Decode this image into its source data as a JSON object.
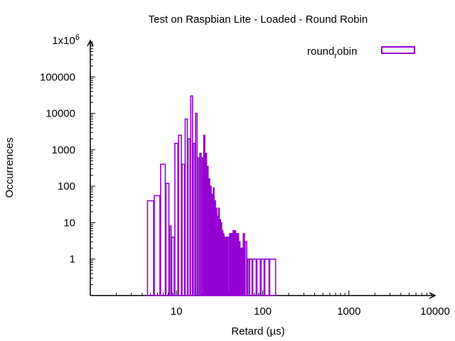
{
  "chart_data": {
    "type": "bar",
    "title": "Test on Raspbian Lite - Loaded - Round Robin",
    "xlabel": "Retard (µs)",
    "ylabel": "Occurrences",
    "x_scale": "log",
    "y_scale": "log",
    "xlim": [
      1,
      10000
    ],
    "ylim": [
      0.1,
      1000000
    ],
    "legend_position": "top-right",
    "grid": false,
    "x_ticks": [
      {
        "value": 10,
        "label": "10"
      },
      {
        "value": 100,
        "label": "100"
      },
      {
        "value": 1000,
        "label": "1000"
      },
      {
        "value": 10000,
        "label": "10000"
      }
    ],
    "y_ticks": [
      {
        "value": 1,
        "label": "1"
      },
      {
        "value": 10,
        "label": "10"
      },
      {
        "value": 100,
        "label": "100"
      },
      {
        "value": 1000,
        "label": "1000"
      },
      {
        "value": 10000,
        "label": "10000"
      },
      {
        "value": 100000,
        "label": "100000"
      }
    ],
    "y_top_tick": {
      "value": 1000000,
      "mantissa": "1x10",
      "exponent": "6"
    },
    "series": [
      {
        "legend_base": "round",
        "legend_sub": "r",
        "legend_rest": "obin",
        "color": "#9400d3",
        "points": [
          [
            5,
            40
          ],
          [
            6,
            55
          ],
          [
            7,
            400
          ],
          [
            8,
            120
          ],
          [
            8.5,
            8
          ],
          [
            9,
            4
          ],
          [
            10,
            1500
          ],
          [
            11,
            2500
          ],
          [
            12,
            400
          ],
          [
            13,
            7000
          ],
          [
            14,
            2000
          ],
          [
            15,
            30000
          ],
          [
            16,
            1500
          ],
          [
            17,
            10000
          ],
          [
            18,
            600
          ],
          [
            19,
            800
          ],
          [
            20,
            600
          ],
          [
            21,
            2500
          ],
          [
            22,
            800
          ],
          [
            23,
            350
          ],
          [
            24,
            160
          ],
          [
            25,
            100
          ],
          [
            26,
            60
          ],
          [
            27,
            90
          ],
          [
            28,
            40
          ],
          [
            29,
            25
          ],
          [
            30,
            15
          ],
          [
            31,
            25
          ],
          [
            32,
            12
          ],
          [
            33,
            10
          ],
          [
            34,
            6
          ],
          [
            35,
            5
          ],
          [
            36,
            4
          ],
          [
            37,
            4
          ],
          [
            38,
            4
          ],
          [
            40,
            4
          ],
          [
            42,
            5
          ],
          [
            44,
            5
          ],
          [
            46,
            6
          ],
          [
            48,
            6
          ],
          [
            50,
            5
          ],
          [
            52,
            5
          ],
          [
            54,
            3
          ],
          [
            56,
            2
          ],
          [
            58,
            2
          ],
          [
            60,
            5
          ],
          [
            64,
            3
          ],
          [
            68,
            1
          ],
          [
            72,
            1
          ],
          [
            80,
            1
          ],
          [
            90,
            1
          ],
          [
            100,
            1
          ],
          [
            110,
            1
          ],
          [
            130,
            1
          ]
        ]
      }
    ]
  }
}
